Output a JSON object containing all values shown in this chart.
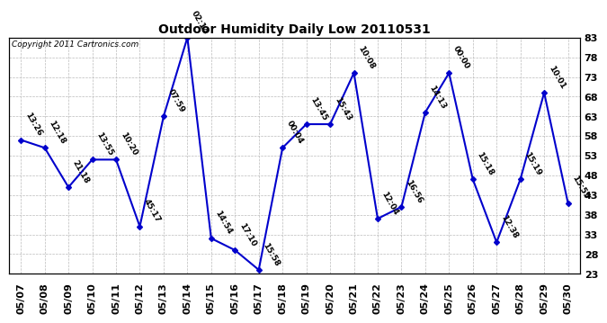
{
  "title": "Outdoor Humidity Daily Low 20110531",
  "copyright_text": "Copyright 2011 Cartronics.com",
  "line_color": "#0000CC",
  "background_color": "#ffffff",
  "grid_color": "#bbbbbb",
  "xlabels": [
    "05/07",
    "05/08",
    "05/09",
    "05/10",
    "05/11",
    "05/12",
    "05/13",
    "05/14",
    "05/15",
    "05/16",
    "05/17",
    "05/18",
    "05/19",
    "05/20",
    "05/21",
    "05/22",
    "05/23",
    "05/24",
    "05/25",
    "05/26",
    "05/27",
    "05/28",
    "05/29",
    "05/30"
  ],
  "yvalues": [
    57,
    55,
    45,
    52,
    52,
    35,
    63,
    83,
    32,
    29,
    24,
    55,
    61,
    61,
    74,
    37,
    40,
    64,
    74,
    47,
    31,
    47,
    69,
    41
  ],
  "time_labels": [
    "13:26",
    "12:18",
    "21:18",
    "13:55",
    "10:20",
    "45:17",
    "07:59",
    "02:14",
    "14:54",
    "17:10",
    "15:58",
    "00:04",
    "13:45",
    "15:43",
    "10:08",
    "12:04",
    "16:56",
    "14:13",
    "00:00",
    "15:18",
    "12:38",
    "15:19",
    "10:01",
    "15:55"
  ],
  "ylim_min": 23,
  "ylim_max": 83,
  "yticks": [
    23,
    28,
    33,
    38,
    43,
    48,
    53,
    58,
    63,
    68,
    73,
    78,
    83
  ],
  "marker": "D",
  "marker_size": 3,
  "line_width": 1.5,
  "label_fontsize": 6.5,
  "tick_fontsize": 8,
  "title_fontsize": 10
}
